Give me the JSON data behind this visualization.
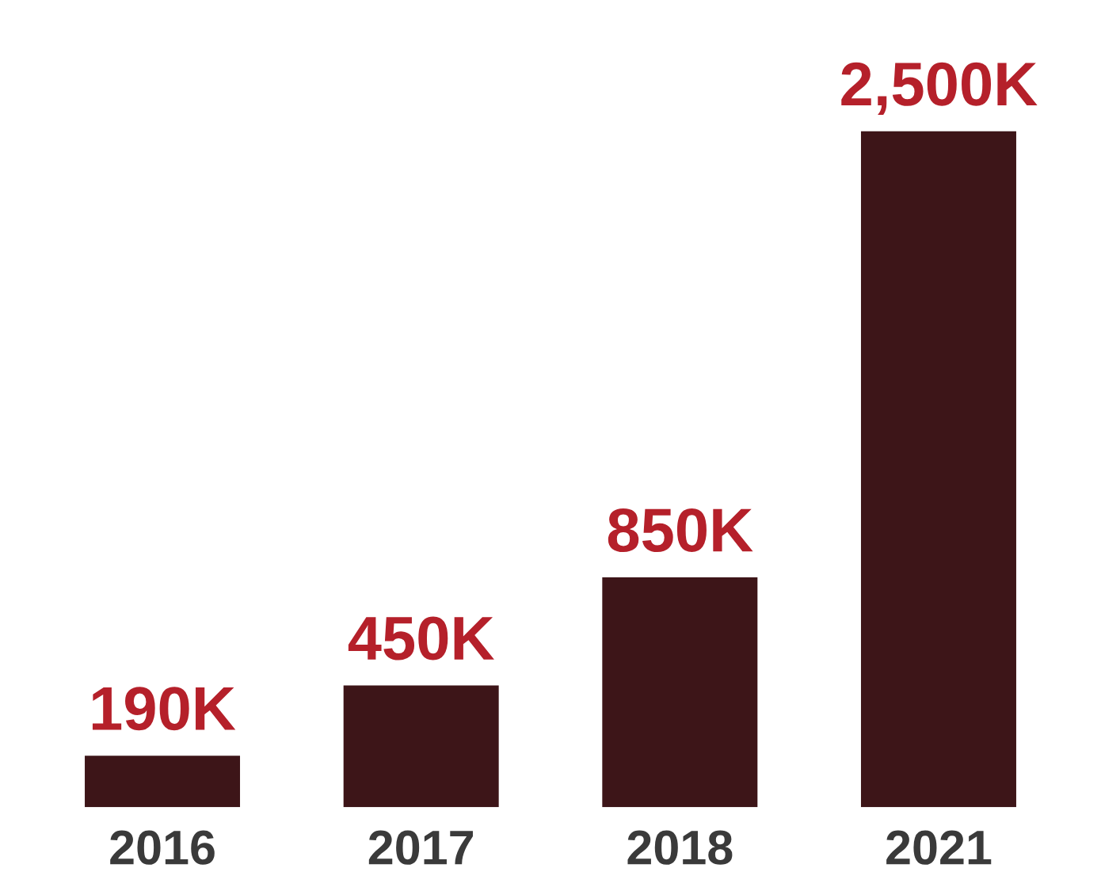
{
  "chart_data": {
    "type": "bar",
    "categories": [
      "2016",
      "2017",
      "2018",
      "2021"
    ],
    "values": [
      190,
      450,
      850,
      2500
    ],
    "value_labels": [
      "190K",
      "450K",
      "850K",
      "2,500K"
    ],
    "color": "#3d1518",
    "tick_labels": "x",
    "grid": false,
    "legend": false
  }
}
